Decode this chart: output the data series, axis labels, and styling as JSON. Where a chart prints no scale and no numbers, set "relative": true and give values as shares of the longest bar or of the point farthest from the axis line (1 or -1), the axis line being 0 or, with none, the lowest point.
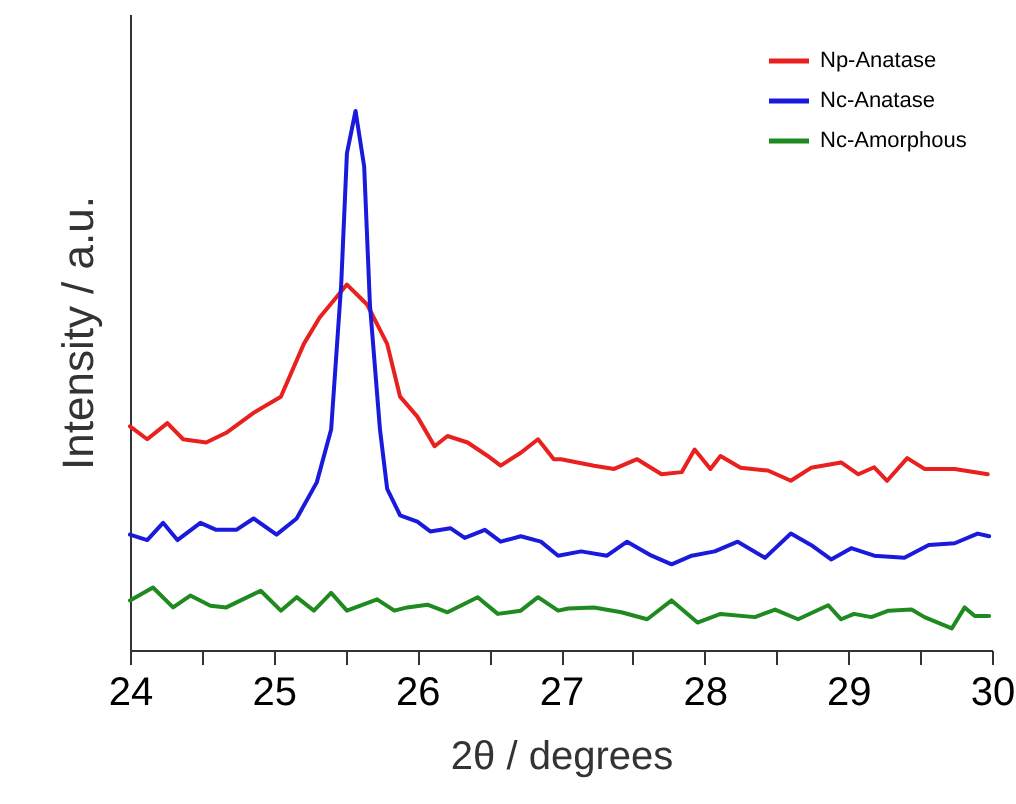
{
  "chart_data": {
    "type": "line",
    "xlabel": "2θ / degrees",
    "ylabel": "Intensity / a.u.",
    "relative": true,
    "legend": "top right",
    "grid": false,
    "xlim": [
      24,
      30
    ],
    "xticks": [
      24,
      {
        "value": 24.5,
        "label": null
      },
      25,
      {
        "value": 25.5,
        "label": null
      },
      26,
      {
        "value": 26.5,
        "label": null
      },
      27,
      {
        "value": 27.5,
        "label": null
      },
      28,
      {
        "value": 28.5,
        "label": null
      },
      29,
      {
        "value": 29.5,
        "label": null
      },
      30
    ],
    "series": [
      {
        "name": "Np-Anatase",
        "color": "#e8201e",
        "x": [
          24.0,
          24.12,
          24.26,
          24.37,
          24.53,
          24.67,
          24.86,
          25.05,
          25.21,
          25.32,
          25.51,
          25.65,
          25.79,
          25.88,
          26.0,
          26.12,
          26.21,
          26.35,
          26.49,
          26.58,
          26.72,
          26.84,
          26.95,
          27.0,
          27.23,
          27.37,
          27.53,
          27.7,
          27.84,
          27.93,
          28.04,
          28.11,
          28.25,
          28.44,
          28.6,
          28.74,
          28.95,
          29.07,
          29.18,
          29.27,
          29.41,
          29.53,
          29.74,
          29.97
        ],
        "values": [
          0.415,
          0.391,
          0.421,
          0.391,
          0.385,
          0.403,
          0.44,
          0.47,
          0.568,
          0.617,
          0.678,
          0.641,
          0.568,
          0.47,
          0.433,
          0.378,
          0.397,
          0.385,
          0.36,
          0.342,
          0.366,
          0.391,
          0.354,
          0.354,
          0.342,
          0.336,
          0.354,
          0.326,
          0.33,
          0.372,
          0.336,
          0.36,
          0.338,
          0.333,
          0.314,
          0.338,
          0.348,
          0.326,
          0.339,
          0.314,
          0.356,
          0.336,
          0.336,
          0.326
        ]
      },
      {
        "name": "Nc-Anatase",
        "color": "#1a1adc",
        "x": [
          24.0,
          24.12,
          24.23,
          24.33,
          24.49,
          24.6,
          24.74,
          24.86,
          25.02,
          25.16,
          25.3,
          25.4,
          25.47,
          25.51,
          25.57,
          25.63,
          25.67,
          25.74,
          25.79,
          25.88,
          26.0,
          26.09,
          26.23,
          26.33,
          26.47,
          26.58,
          26.72,
          26.86,
          26.98,
          27.14,
          27.32,
          27.46,
          27.63,
          27.77,
          27.91,
          28.07,
          28.23,
          28.42,
          28.6,
          28.74,
          28.88,
          29.02,
          29.18,
          29.39,
          29.56,
          29.74,
          29.9,
          29.98
        ],
        "values": [
          0.214,
          0.204,
          0.236,
          0.204,
          0.236,
          0.223,
          0.223,
          0.244,
          0.214,
          0.244,
          0.311,
          0.409,
          0.678,
          0.922,
          1,
          0.897,
          0.641,
          0.409,
          0.299,
          0.25,
          0.238,
          0.22,
          0.226,
          0.208,
          0.223,
          0.201,
          0.211,
          0.201,
          0.175,
          0.183,
          0.175,
          0.201,
          0.175,
          0.159,
          0.175,
          0.183,
          0.201,
          0.171,
          0.216,
          0.195,
          0.168,
          0.189,
          0.175,
          0.171,
          0.195,
          0.198,
          0.216,
          0.211
        ]
      },
      {
        "name": "Nc-Amorphous",
        "color": "#1f8a1f",
        "x": [
          24.0,
          24.16,
          24.3,
          24.42,
          24.56,
          24.67,
          24.91,
          25.05,
          25.16,
          25.28,
          25.4,
          25.51,
          25.72,
          25.84,
          25.93,
          26.07,
          26.21,
          26.42,
          26.56,
          26.72,
          26.84,
          26.98,
          27.05,
          27.23,
          27.42,
          27.6,
          27.77,
          27.95,
          28.11,
          28.35,
          28.49,
          28.65,
          28.86,
          28.95,
          29.04,
          29.16,
          29.28,
          29.44,
          29.53,
          29.72,
          29.81,
          29.88,
          29.98
        ],
        "values": [
          0.092,
          0.116,
          0.079,
          0.101,
          0.082,
          0.079,
          0.11,
          0.073,
          0.098,
          0.073,
          0.106,
          0.073,
          0.094,
          0.073,
          0.079,
          0.084,
          0.07,
          0.098,
          0.067,
          0.073,
          0.098,
          0.073,
          0.077,
          0.079,
          0.07,
          0.057,
          0.092,
          0.051,
          0.067,
          0.061,
          0.075,
          0.057,
          0.083,
          0.057,
          0.067,
          0.061,
          0.073,
          0.075,
          0.061,
          0.04,
          0.079,
          0.063,
          0.063
        ]
      }
    ]
  }
}
